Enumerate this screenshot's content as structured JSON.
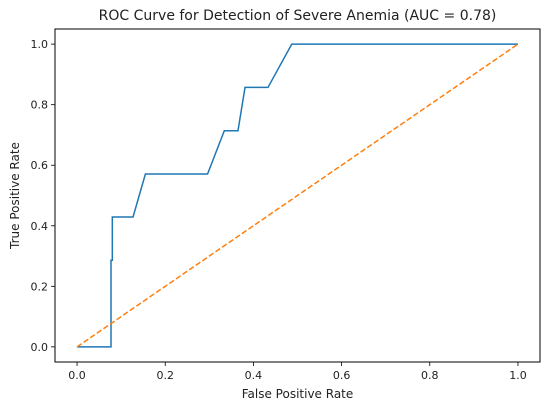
{
  "chart_data": {
    "type": "line",
    "title": "ROC Curve for Detection of Severe Anemia (AUC = 0.78)",
    "xlabel": "False Positive Rate",
    "ylabel": "True Positive Rate",
    "xlim": [
      -0.05,
      1.05
    ],
    "ylim": [
      -0.05,
      1.05
    ],
    "xticks": [
      "0.0",
      "0.2",
      "0.4",
      "0.6",
      "0.8",
      "1.0"
    ],
    "yticks": [
      "0.0",
      "0.2",
      "0.4",
      "0.6",
      "0.8",
      "1.0"
    ],
    "grid": false,
    "series": [
      {
        "color": "#1f77b4",
        "style": "solid",
        "points": [
          [
            0.0,
            0.0
          ],
          [
            0.077,
            0.0
          ],
          [
            0.077,
            0.143
          ],
          [
            0.077,
            0.286
          ],
          [
            0.08,
            0.286
          ],
          [
            0.08,
            0.429
          ],
          [
            0.127,
            0.429
          ],
          [
            0.155,
            0.571
          ],
          [
            0.296,
            0.571
          ],
          [
            0.334,
            0.714
          ],
          [
            0.365,
            0.714
          ],
          [
            0.381,
            0.857
          ],
          [
            0.433,
            0.857
          ],
          [
            0.487,
            1.0
          ],
          [
            1.0,
            1.0
          ]
        ]
      },
      {
        "color": "#ff7f0e",
        "style": "dashed",
        "points": [
          [
            0.0,
            0.0
          ],
          [
            1.0,
            1.0
          ]
        ]
      }
    ]
  }
}
